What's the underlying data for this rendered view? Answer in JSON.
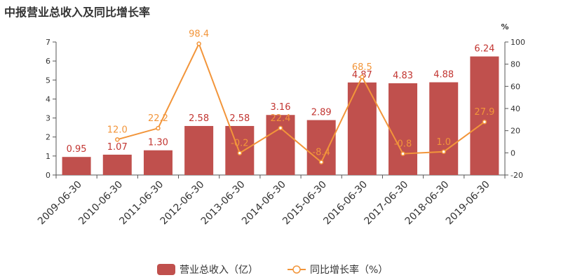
{
  "title": "中报营业总收入及同比增长率",
  "colors": {
    "bar": "#c0504d",
    "line": "#f2953a",
    "axis": "#555555",
    "text": "#333333"
  },
  "chart_data": {
    "type": "bar",
    "title": "中报营业总收入及同比增长率",
    "categories": [
      "2009-06-30",
      "2010-06-30",
      "2011-06-30",
      "2012-06-30",
      "2013-06-30",
      "2014-06-30",
      "2015-06-30",
      "2016-06-30",
      "2017-06-30",
      "2018-06-30",
      "2019-06-30"
    ],
    "series": [
      {
        "name": "营业总收入（亿）",
        "type": "bar",
        "axis": "left",
        "values": [
          0.95,
          1.07,
          1.3,
          2.58,
          2.58,
          3.16,
          2.89,
          4.87,
          4.83,
          4.88,
          6.24
        ],
        "labels": [
          "0.95",
          "1.07",
          "1.30",
          "2.58",
          "2.58",
          "3.16",
          "2.89",
          "4.87",
          "4.83",
          "4.88",
          "6.24"
        ]
      },
      {
        "name": "同比增长率（%）",
        "type": "line",
        "axis": "right",
        "values": [
          null,
          12.0,
          22.2,
          98.4,
          -0.2,
          22.4,
          -8.4,
          68.5,
          -0.8,
          1.0,
          27.9
        ],
        "labels": [
          "",
          "12.0",
          "22.2",
          "98.4",
          "-0.2",
          "22.4",
          "-8.4",
          "68.5",
          "-0.8",
          "1.0",
          "27.9"
        ]
      }
    ],
    "left_axis": {
      "ylim": [
        0,
        7
      ],
      "ticks": [
        "0",
        "1",
        "2",
        "3",
        "4",
        "5",
        "6",
        "7"
      ]
    },
    "right_axis": {
      "ylim": [
        -20,
        100
      ],
      "ticks": [
        "-20",
        "0",
        "20",
        "40",
        "60",
        "80",
        "100"
      ],
      "unit": "%"
    },
    "grid": false,
    "legend": {
      "position": "bottom",
      "bar_label": "营业总收入（亿）",
      "line_label": "同比增长率（%）"
    }
  }
}
